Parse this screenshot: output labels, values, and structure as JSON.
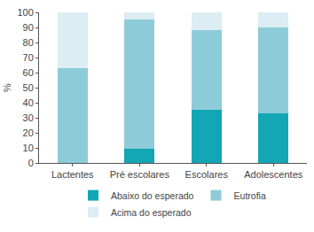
{
  "chart_data": {
    "type": "bar",
    "stacked": true,
    "y_label": "%",
    "categories": [
      "Lactentes",
      "Pré escolares",
      "Escolares",
      "Adolescentes"
    ],
    "series": [
      {
        "name": "Abaixo do esperado",
        "color": "#13a6b5",
        "values": [
          0,
          9.5,
          35.5,
          33
        ]
      },
      {
        "name": "Eutrofia",
        "color": "#8dcbd9",
        "values": [
          63,
          86,
          53,
          57
        ]
      },
      {
        "name": "Acima do esperado",
        "color": "#dcedf3",
        "values": [
          37,
          4.5,
          11.5,
          10
        ]
      }
    ],
    "ylim": [
      0,
      100
    ],
    "yticks": [
      0,
      10,
      20,
      30,
      40,
      50,
      60,
      70,
      80,
      90,
      100
    ],
    "grid": false,
    "legend": "bottom"
  }
}
